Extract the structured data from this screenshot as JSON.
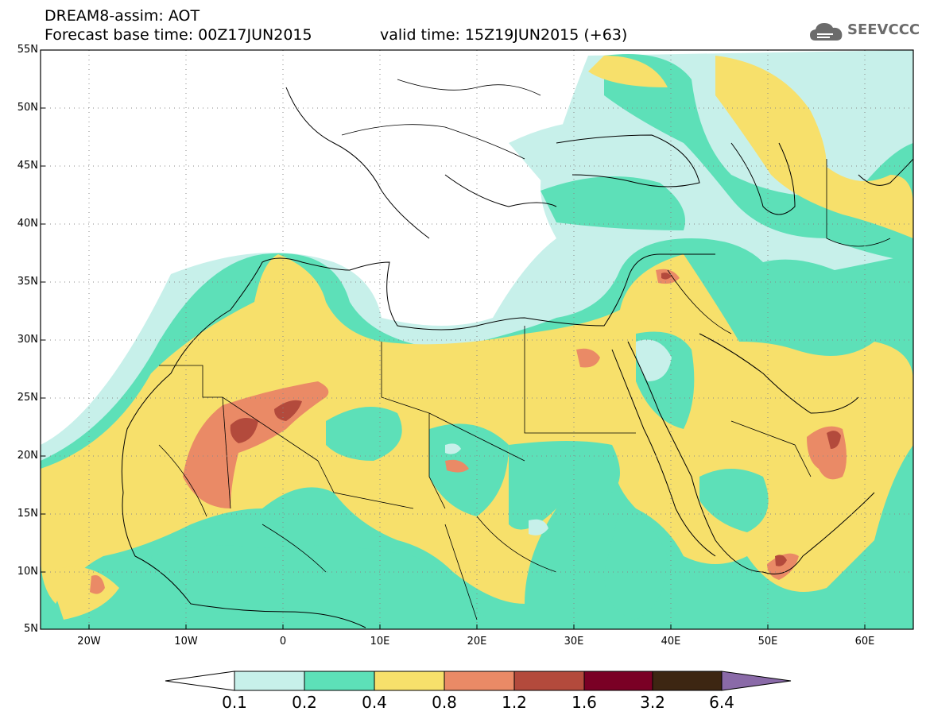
{
  "header": {
    "title": "DREAM8-assim: AOT",
    "base_time": "Forecast base time: 00Z17JUN2015",
    "valid_time": "valid time: 15Z19JUN2015 (+63)"
  },
  "logo": {
    "text": "SEEVCCC",
    "icon": "cloud-icon"
  },
  "map": {
    "projection": "lat-lon",
    "lon_range": [
      -25,
      65
    ],
    "lat_range": [
      5,
      55
    ],
    "lat_ticks": [
      "55N",
      "50N",
      "45N",
      "40N",
      "35N",
      "30N",
      "25N",
      "20N",
      "15N",
      "10N",
      "5N"
    ],
    "lon_ticks": [
      "20W",
      "10W",
      "0",
      "10E",
      "20E",
      "30E",
      "40E",
      "50E",
      "60E"
    ],
    "grid": "dotted",
    "field": "Aerosol optical thickness (dust)"
  },
  "colorbar": {
    "levels": [
      "0.1",
      "0.2",
      "0.4",
      "0.8",
      "1.2",
      "1.6",
      "3.2",
      "6.4"
    ],
    "colors": [
      "#ffffff",
      "#c7f0ea",
      "#5de0b8",
      "#f7e06b",
      "#ea8a66",
      "#b34a3c",
      "#7a0025",
      "#3d2612",
      "#8a6aa8"
    ]
  }
}
